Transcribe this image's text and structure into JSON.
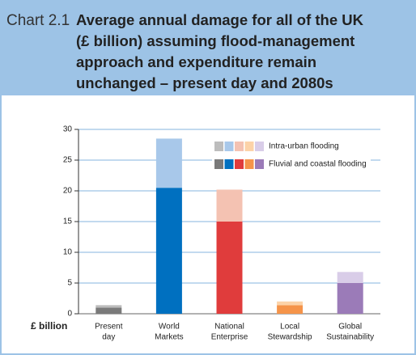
{
  "chart_data": {
    "type": "stacked-bar",
    "label": "Chart 2.1",
    "title": [
      "Average annual damage for all of the UK",
      "(£ billion) assuming flood-management",
      "approach and expenditure remain",
      "unchanged – present day and 2080s"
    ],
    "ylabel": "£ billion",
    "categories": [
      [
        "Present",
        "day"
      ],
      [
        "World",
        "Markets"
      ],
      [
        "National",
        "Enterprise"
      ],
      [
        "Local",
        "Stewardship"
      ],
      [
        "Global",
        "Sustainability"
      ]
    ],
    "series": [
      {
        "name": "Fluvial and coastal flooding",
        "color": [
          "#7a7a7a",
          "#0070c0",
          "#e03c3c",
          "#f5944a",
          "#9b7bb8"
        ],
        "values": [
          1.0,
          20.5,
          15,
          1.4,
          5
        ]
      },
      {
        "name": "Intra-urban flooding",
        "color": [
          "#bdbdbd",
          "#a8c8ea",
          "#f4c2b2",
          "#fcd3a8",
          "#d9cde8"
        ],
        "values": [
          0.4,
          8,
          5.2,
          0.6,
          1.8
        ]
      }
    ],
    "ylim": [
      0,
      30
    ],
    "yticks": [
      0,
      5,
      10,
      15,
      20,
      25,
      30
    ],
    "grid": true
  }
}
